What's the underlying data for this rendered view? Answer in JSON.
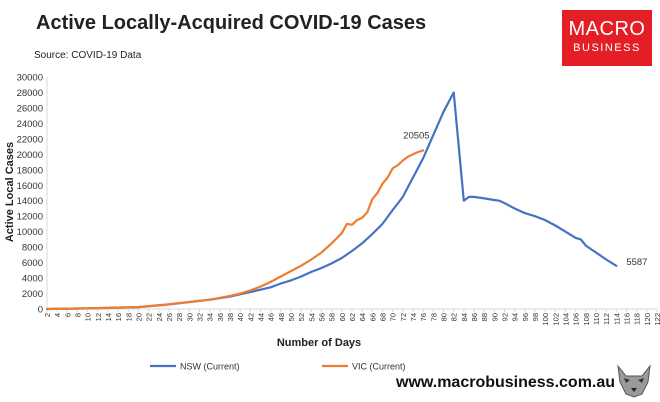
{
  "title": "Active Locally-Acquired COVID-19 Cases",
  "source": "Source: COVID-19 Data",
  "logo": {
    "line1": "MACRO",
    "line2": "BUSINESS"
  },
  "footer_url": "www.macrobusiness.com.au",
  "mascot_icon": "wolf-mascot-icon",
  "chart_data": {
    "type": "line",
    "xlabel": "Number of Days",
    "ylabel": "Active Local Cases",
    "ylim": [
      0,
      30000
    ],
    "xlim": [
      2,
      122
    ],
    "y_ticks": [
      0,
      2000,
      4000,
      6000,
      8000,
      10000,
      12000,
      14000,
      16000,
      18000,
      20000,
      22000,
      24000,
      26000,
      28000,
      30000
    ],
    "x_ticks": [
      2,
      4,
      6,
      8,
      10,
      12,
      14,
      16,
      18,
      20,
      22,
      24,
      26,
      28,
      30,
      32,
      34,
      36,
      38,
      40,
      42,
      44,
      46,
      48,
      50,
      52,
      54,
      56,
      58,
      60,
      62,
      64,
      66,
      68,
      70,
      72,
      74,
      76,
      78,
      80,
      82,
      84,
      86,
      88,
      90,
      92,
      94,
      96,
      98,
      100,
      102,
      104,
      106,
      108,
      110,
      112,
      114,
      116,
      118,
      120,
      122
    ],
    "grid": false,
    "legend_position": "bottom",
    "series": [
      {
        "name": "NSW (Current)",
        "color": "#4472C4",
        "end_label": "5587",
        "x": [
          2,
          10,
          20,
          26,
          30,
          34,
          38,
          42,
          44,
          46,
          48,
          50,
          52,
          54,
          56,
          58,
          60,
          62,
          64,
          66,
          68,
          70,
          72,
          74,
          76,
          78,
          80,
          82,
          84,
          85,
          86,
          88,
          90,
          91,
          92,
          94,
          96,
          98,
          100,
          102,
          104,
          106,
          107,
          108,
          110,
          112,
          114
        ],
        "y": [
          0,
          80,
          250,
          600,
          900,
          1200,
          1600,
          2200,
          2500,
          2800,
          3300,
          3700,
          4200,
          4800,
          5300,
          5900,
          6600,
          7500,
          8500,
          9700,
          11000,
          12800,
          14500,
          17000,
          19500,
          22500,
          25500,
          28000,
          14000,
          14500,
          14500,
          14300,
          14100,
          14000,
          13700,
          13000,
          12400,
          12000,
          11500,
          10800,
          10000,
          9200,
          9000,
          8200,
          7300,
          6400,
          5587
        ]
      },
      {
        "name": "VIC (Current)",
        "color": "#ED7D31",
        "end_label": "20505",
        "x": [
          2,
          10,
          20,
          26,
          30,
          34,
          38,
          40,
          42,
          44,
          46,
          48,
          50,
          52,
          54,
          56,
          58,
          60,
          61,
          62,
          63,
          64,
          65,
          66,
          67,
          68,
          69,
          70,
          71,
          72,
          73,
          74,
          75,
          76
        ],
        "y": [
          0,
          80,
          250,
          600,
          900,
          1200,
          1700,
          2000,
          2400,
          2900,
          3500,
          4200,
          4900,
          5600,
          6400,
          7300,
          8500,
          9800,
          11000,
          10900,
          11500,
          11800,
          12500,
          14200,
          15000,
          16200,
          17000,
          18200,
          18600,
          19200,
          19700,
          20000,
          20300,
          20505
        ]
      }
    ]
  }
}
